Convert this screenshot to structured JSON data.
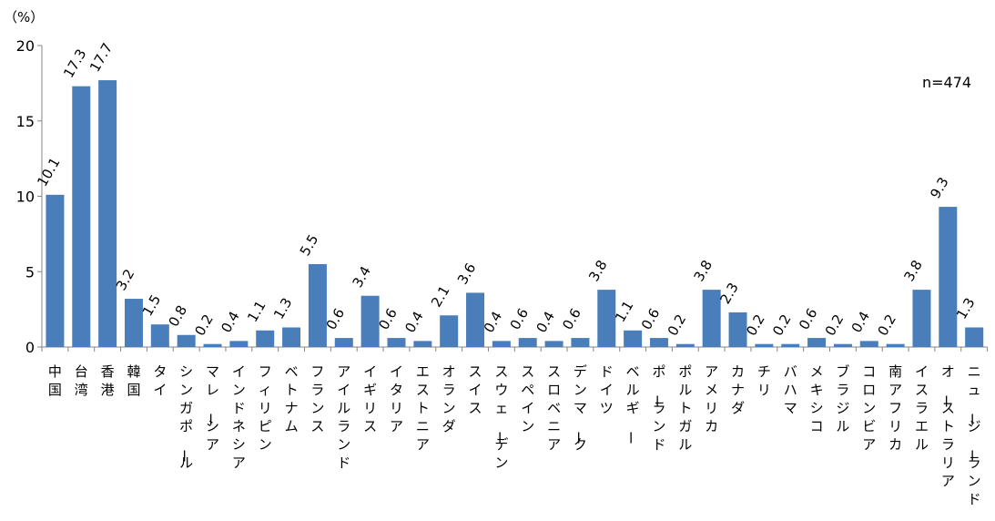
{
  "chart_data": {
    "type": "bar",
    "unit_label": "（%）",
    "annotation": "n=474",
    "ylim": [
      0,
      20
    ],
    "yticks": [
      0,
      5,
      10,
      15,
      20
    ],
    "grid": false,
    "bar_color": "#4a7ebb",
    "categories": [
      "中国",
      "台湾",
      "香港",
      "韓国",
      "タイ",
      "シンガポール",
      "マレーシア",
      "インドネシア",
      "フィリピン",
      "ベトナム",
      "フランス",
      "アイルランド",
      "イギリス",
      "イタリア",
      "エストニア",
      "オランダ",
      "スイス",
      "スウェーデン",
      "スペイン",
      "スロベニア",
      "デンマーク",
      "ドイツ",
      "ベルギー",
      "ポーランド",
      "ポルトガル",
      "アメリカ",
      "カナダ",
      "チリ",
      "バハマ",
      "メキシコ",
      "ブラジル",
      "コロンビア",
      "南アフリカ",
      "イスラエル",
      "オーストラリア",
      "ニュージーランド"
    ],
    "values": [
      10.1,
      17.3,
      17.7,
      3.2,
      1.5,
      0.8,
      0.2,
      0.4,
      1.1,
      1.3,
      5.5,
      0.6,
      3.4,
      0.6,
      0.4,
      2.1,
      3.6,
      0.4,
      0.6,
      0.4,
      0.6,
      3.8,
      1.1,
      0.6,
      0.2,
      3.8,
      2.3,
      0.2,
      0.2,
      0.6,
      0.2,
      0.4,
      0.2,
      3.8,
      9.3,
      1.3
    ]
  }
}
